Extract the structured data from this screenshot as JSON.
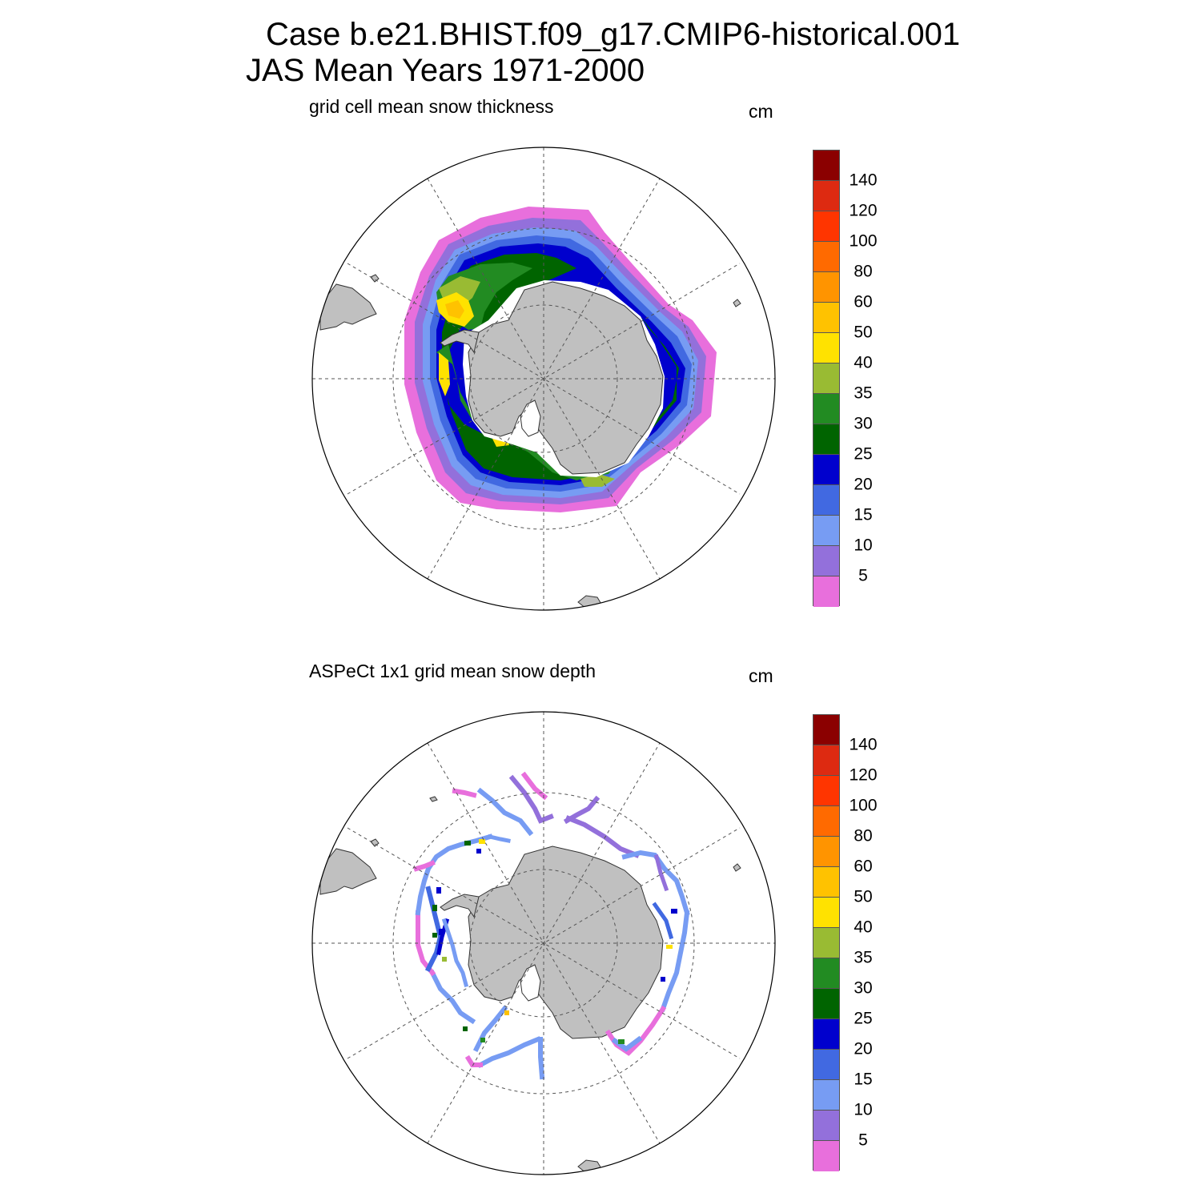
{
  "header": {
    "line1": "Case b.e21.BHIST.f09_g17.CMIP6-historical.001",
    "line2": "JAS Mean   Years 1971-2000"
  },
  "panels": [
    {
      "subtitle": "grid cell mean snow thickness",
      "units": "cm",
      "style": "model"
    },
    {
      "subtitle": "ASPeCt 1x1 grid mean snow depth",
      "units": "cm",
      "style": "obs"
    }
  ],
  "colorbar": {
    "labels": [
      "140",
      "120",
      "100",
      "80",
      "60",
      "50",
      "40",
      "35",
      "30",
      "25",
      "20",
      "15",
      "10",
      "5"
    ],
    "colors": [
      "#8b0000",
      "#dd2a11",
      "#ff3500",
      "#ff6a00",
      "#ff9400",
      "#ffc200",
      "#ffe200",
      "#99bb33",
      "#228b22",
      "#006400",
      "#0000cd",
      "#4169e1",
      "#779cf3",
      "#9370db",
      "#e86fdc"
    ]
  },
  "colors": {
    "land": "#c0c0c0",
    "grid": "#555555"
  }
}
